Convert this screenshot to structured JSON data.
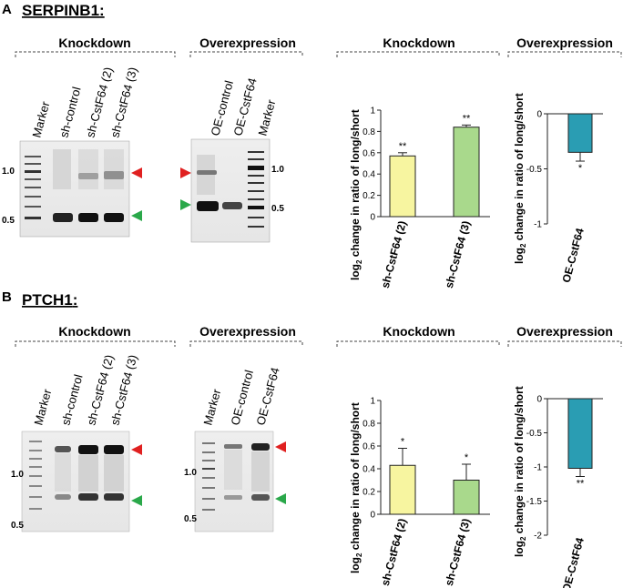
{
  "panels": [
    {
      "label": "A",
      "gene": "SERPINB1",
      "gene_suffix": ":",
      "group_knockdown": "Knockdown",
      "group_overexpression": "Overexpression",
      "gel_kd_lanes": [
        "Marker",
        "sh-control",
        "sh-CstF64 (2)",
        "sh-CstF64 (3)"
      ],
      "gel_oe_lanes": [
        "OE-control",
        "OE-CstF64",
        "Marker"
      ],
      "gel_kd_markers": [
        "1.0",
        "0.5"
      ],
      "gel_oe_markers": [
        "1.0",
        "0.5"
      ],
      "chart_kd_title": "Knockdown",
      "chart_oe_title": "Overexpression"
    },
    {
      "label": "B",
      "gene": "PTCH1",
      "gene_suffix": ":",
      "group_knockdown": "Knockdown",
      "group_overexpression": "Overexpression",
      "gel_kd_lanes": [
        "Marker",
        "sh-control",
        "sh-CstF64 (2)",
        "sh-CstF64 (3)"
      ],
      "gel_oe_lanes": [
        "Marker",
        "OE-control",
        "OE-CstF64"
      ],
      "gel_kd_markers": [
        "1.0",
        "0.5"
      ],
      "gel_oe_markers": [
        "1.0",
        "0.5"
      ],
      "chart_kd_title": "Knockdown",
      "chart_oe_title": "Overexpression"
    }
  ],
  "ylabel_prefix": "log",
  "ylabel_sub": "2",
  "ylabel_rest": " change in ratio of long/short",
  "colors": {
    "sh2": "#f7f5a0",
    "sh3": "#a9d98c",
    "oe": "#2a9db3",
    "arrow_long": "#e02020",
    "arrow_short": "#2aa84a"
  },
  "chart_data": [
    {
      "type": "bar",
      "panel": "A",
      "title": "Knockdown",
      "categories": [
        "sh-CstF64 (2)",
        "sh-CstF64 (3)"
      ],
      "values": [
        0.57,
        0.84
      ],
      "errors": [
        0.03,
        0.02
      ],
      "significance": [
        "**",
        "**"
      ],
      "ylim": [
        0,
        1
      ],
      "yticks": [
        "0",
        "0.2",
        "0.4",
        "0.6",
        "0.8",
        "1"
      ],
      "ylabel": "log2 change in ratio of long/short"
    },
    {
      "type": "bar",
      "panel": "A",
      "title": "Overexpression",
      "categories": [
        "OE-CstF64"
      ],
      "values": [
        -0.35
      ],
      "errors": [
        0.08
      ],
      "significance": [
        "*"
      ],
      "ylim": [
        -1,
        0
      ],
      "yticks": [
        "0",
        "-0.5",
        "-1"
      ],
      "ylabel": "log2 change in ratio of long/short"
    },
    {
      "type": "bar",
      "panel": "B",
      "title": "Knockdown",
      "categories": [
        "sh-CstF64 (2)",
        "sh-CstF64 (3)"
      ],
      "values": [
        0.43,
        0.3
      ],
      "errors": [
        0.15,
        0.14
      ],
      "significance": [
        "*",
        "*"
      ],
      "ylim": [
        0,
        1
      ],
      "yticks": [
        "0",
        "0.2",
        "0.4",
        "0.6",
        "0.8",
        "1"
      ],
      "ylabel": "log2 change in ratio of long/short"
    },
    {
      "type": "bar",
      "panel": "B",
      "title": "Overexpression",
      "categories": [
        "OE-CstF64"
      ],
      "values": [
        -1.02
      ],
      "errors": [
        0.12
      ],
      "significance": [
        "**"
      ],
      "ylim": [
        -2,
        0
      ],
      "yticks": [
        "0",
        "-0.5",
        "-1",
        "-1.5",
        "-2"
      ],
      "ylabel": "log2 change in ratio of long/short"
    }
  ]
}
